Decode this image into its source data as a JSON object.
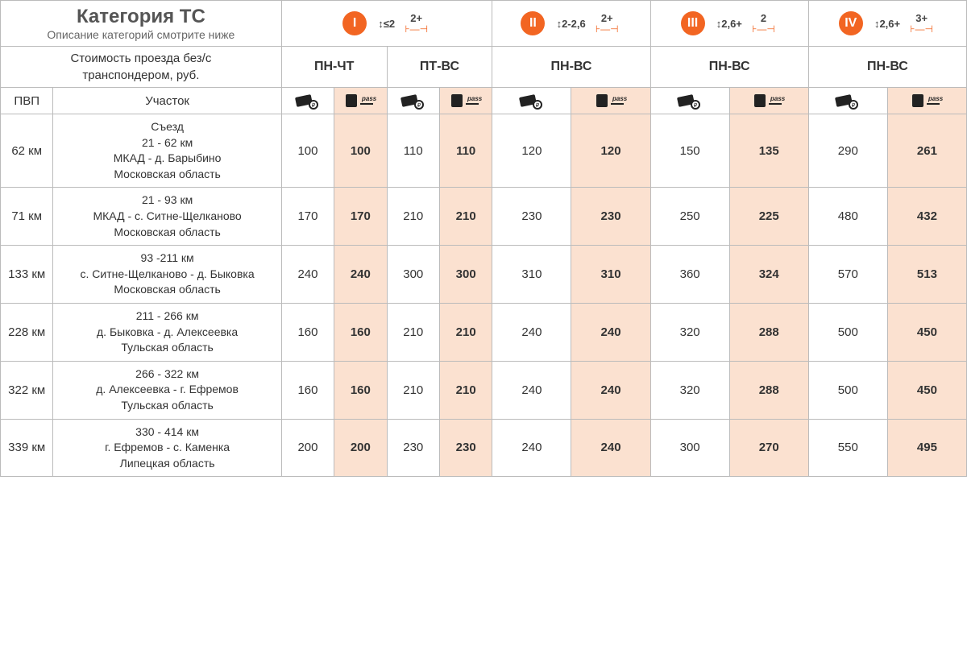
{
  "header": {
    "title": "Категория ТС",
    "subtitle": "Описание категорий смотрите ниже",
    "price_label_line1": "Стоимость проезда без/с",
    "price_label_line2": "транспондером, руб.",
    "pvp": "ПВП",
    "section": "Участок"
  },
  "categories": [
    {
      "num": "I",
      "height": "≤2",
      "axles": "2+",
      "days1": "ПН-ЧТ",
      "days2": "ПТ-ВС",
      "two_day_cols": true
    },
    {
      "num": "II",
      "height": "2-2,6",
      "axles": "2+",
      "days": "ПН-ВС"
    },
    {
      "num": "III",
      "height": "2,6+",
      "axles": "2",
      "days": "ПН-ВС"
    },
    {
      "num": "IV",
      "height": "2,6+",
      "axles": "3+",
      "days": "ПН-ВС"
    }
  ],
  "colors": {
    "accent": "#f26522",
    "pass_bg": "#fbe1d0",
    "border": "#bbbbbb"
  },
  "rows": [
    {
      "pvp": "62 км",
      "section": "Съезд\n21 - 62 км\nМКАД - д. Барыбино\nМосковская область",
      "vals": [
        100,
        100,
        110,
        110,
        120,
        120,
        150,
        135,
        290,
        261
      ]
    },
    {
      "pvp": "71 км",
      "section": "21 - 93 км\nМКАД - с. Ситне-Щелканово\nМосковская область",
      "vals": [
        170,
        170,
        210,
        210,
        230,
        230,
        250,
        225,
        480,
        432
      ]
    },
    {
      "pvp": "133 км",
      "section": "93 -211 км\nс. Ситне-Щелканово - д. Быковка\nМосковская область",
      "vals": [
        240,
        240,
        300,
        300,
        310,
        310,
        360,
        324,
        570,
        513
      ]
    },
    {
      "pvp": "228 км",
      "section": "211 - 266 км\nд. Быковка - д. Алексеевка\nТульская область",
      "vals": [
        160,
        160,
        210,
        210,
        240,
        240,
        320,
        288,
        500,
        450
      ]
    },
    {
      "pvp": "322 км",
      "section": "266 - 322 км\nд. Алексеевка - г. Ефремов\nТульская область",
      "vals": [
        160,
        160,
        210,
        210,
        240,
        240,
        320,
        288,
        500,
        450
      ]
    },
    {
      "pvp": "339 км",
      "section": "330 - 414 км\nг. Ефремов - с. Каменка\nЛипецкая область",
      "vals": [
        200,
        200,
        230,
        230,
        240,
        240,
        300,
        270,
        550,
        495
      ]
    }
  ]
}
